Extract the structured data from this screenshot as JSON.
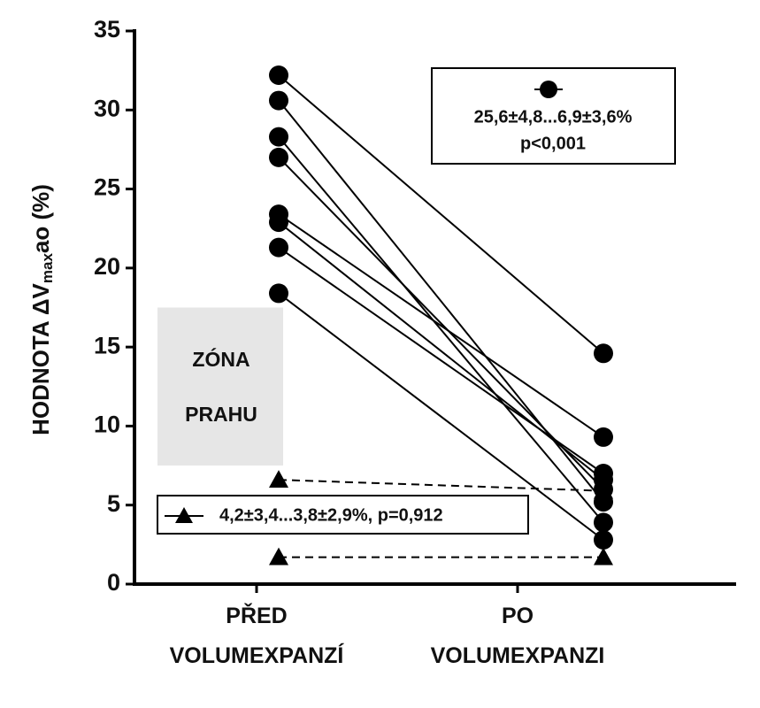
{
  "chart_data": {
    "type": "line",
    "ylabel": {
      "main": "HODNOTA ΔV",
      "sub": "max",
      "tail": "ao (%)"
    },
    "categories": [
      "PŘED VOLUMEXPANZÍ",
      "PO VOLUMEXPANZI"
    ],
    "ylim": [
      0,
      35
    ],
    "yticks": [
      0,
      5,
      10,
      15,
      20,
      25,
      30,
      35
    ],
    "color": "#000000",
    "series": [
      {
        "marker": "circle",
        "dashed": false,
        "values": [
          32.2,
          14.6
        ]
      },
      {
        "marker": "circle",
        "dashed": false,
        "values": [
          30.6,
          5.2
        ]
      },
      {
        "marker": "circle",
        "dashed": false,
        "values": [
          28.3,
          3.9
        ]
      },
      {
        "marker": "circle",
        "dashed": false,
        "values": [
          27.0,
          6.0
        ]
      },
      {
        "marker": "circle",
        "dashed": false,
        "values": [
          23.4,
          9.3
        ]
      },
      {
        "marker": "circle",
        "dashed": false,
        "values": [
          22.9,
          6.6
        ]
      },
      {
        "marker": "circle",
        "dashed": false,
        "values": [
          21.3,
          7.0
        ]
      },
      {
        "marker": "circle",
        "dashed": false,
        "values": [
          18.4,
          2.8
        ]
      },
      {
        "marker": "triangle",
        "dashed": true,
        "values": [
          6.6,
          5.9
        ]
      },
      {
        "marker": "triangle",
        "dashed": true,
        "values": [
          1.7,
          1.7
        ]
      }
    ],
    "zone": {
      "lines": [
        "ZÓNA",
        "PRAHU"
      ],
      "range": [
        7.5,
        17.5
      ],
      "color": "#e6e6e6"
    },
    "annotations": [
      {
        "marker": "circle",
        "lines": [
          "25,6±4,8...6,9±3,6%",
          "p<0,001"
        ]
      },
      {
        "marker": "triangle",
        "lines": [
          "4,2±3,4...3,8±2,9%, p=0,912"
        ]
      }
    ]
  }
}
